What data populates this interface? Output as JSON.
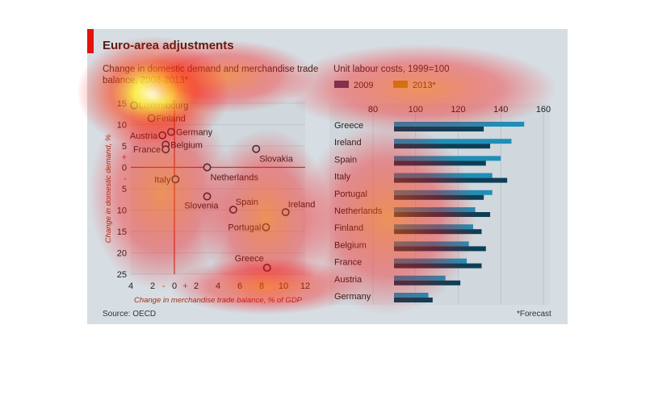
{
  "header": {
    "title": "Euro-area adjustments"
  },
  "left_chart": {
    "subtitle_line1": "Change in domestic demand and merchandise trade",
    "subtitle_line2": "balance, 2008-2013*",
    "xlabel": "Change in merchandise trade balance, % of GDP",
    "ylabel": "Change in domestic demand, %"
  },
  "right_chart": {
    "subtitle": "Unit labour costs, 1999=100",
    "legend_2009": "2009",
    "legend_2013": "2013*"
  },
  "footer": {
    "source": "Source: OECD",
    "forecast_note": "*Forecast"
  },
  "colors": {
    "series_2009": "#1f8fb8",
    "series_2013": "#0c3f57",
    "zero_line": "#c0392b",
    "title_bar": "#e3120b"
  },
  "chart_data": [
    {
      "type": "scatter",
      "xlabel": "Change in merchandise trade balance, % of GDP",
      "ylabel": "Change in domestic demand, %",
      "xlim": [
        -4,
        12
      ],
      "ylim": [
        -25,
        15
      ],
      "x_ticks": [
        {
          "value": -4,
          "label": "4"
        },
        {
          "value": -2,
          "label": "2"
        },
        {
          "value": -1,
          "label": "-"
        },
        {
          "value": 0,
          "label": "0"
        },
        {
          "value": 1,
          "label": "+"
        },
        {
          "value": 2,
          "label": "2"
        },
        {
          "value": 4,
          "label": "4"
        },
        {
          "value": 6,
          "label": "6"
        },
        {
          "value": 8,
          "label": "8"
        },
        {
          "value": 10,
          "label": "10"
        },
        {
          "value": 12,
          "label": "12"
        }
      ],
      "y_ticks": [
        {
          "value": 15,
          "label": "15"
        },
        {
          "value": 10,
          "label": "10"
        },
        {
          "value": 5,
          "label": "5"
        },
        {
          "value": 2.5,
          "label": "+"
        },
        {
          "value": 0,
          "label": "0"
        },
        {
          "value": -2.5,
          "label": "-"
        },
        {
          "value": -5,
          "label": "5"
        },
        {
          "value": -10,
          "label": "10"
        },
        {
          "value": -15,
          "label": "15"
        },
        {
          "value": -20,
          "label": "20"
        },
        {
          "value": -25,
          "label": "25"
        }
      ],
      "points": [
        {
          "name": "Luxembourg",
          "label": "Luxembourg",
          "x": -3.7,
          "y": 14.5,
          "label_pos": "right"
        },
        {
          "name": "Finland",
          "label": "Finland",
          "x": -2.1,
          "y": 11.5,
          "label_pos": "right"
        },
        {
          "name": "Austria",
          "label": "Austria",
          "x": -1.1,
          "y": 7.5,
          "label_pos": "left"
        },
        {
          "name": "Germany",
          "label": "Germany",
          "x": -0.3,
          "y": 8.3,
          "label_pos": "right"
        },
        {
          "name": "Belgium",
          "label": "Belgium",
          "x": -0.8,
          "y": 5.3,
          "label_pos": "right"
        },
        {
          "name": "France",
          "label": "France",
          "x": -0.8,
          "y": 4.2,
          "label_pos": "left"
        },
        {
          "name": "Slovakia",
          "label": "Slovakia",
          "x": 7.5,
          "y": 4.3,
          "label_pos": "below-right"
        },
        {
          "name": "Netherlands",
          "label": "Netherlands",
          "x": 3.0,
          "y": 0.0,
          "label_pos": "below-right"
        },
        {
          "name": "Italy",
          "label": "Italy",
          "x": 0.1,
          "y": -2.8,
          "label_pos": "left"
        },
        {
          "name": "Slovenia",
          "label": "Slovenia",
          "x": 3.0,
          "y": -6.8,
          "label_pos": "below-left"
        },
        {
          "name": "Spain",
          "label": "Spain",
          "x": 5.4,
          "y": -9.9,
          "label_pos": "above-right"
        },
        {
          "name": "Ireland",
          "label": "Ireland",
          "x": 10.2,
          "y": -10.5,
          "label_pos": "above-right"
        },
        {
          "name": "Portugal",
          "label": "Portugal",
          "x": 8.4,
          "y": -14.0,
          "label_pos": "left"
        },
        {
          "name": "Greece",
          "label": "Greece",
          "x": 8.5,
          "y": -23.5,
          "label_pos": "above-left"
        }
      ]
    },
    {
      "type": "bar",
      "orientation": "horizontal",
      "title": "Unit labour costs, 1999=100",
      "xlim": [
        80,
        160
      ],
      "x_ticks": [
        80,
        100,
        120,
        140,
        160
      ],
      "categories": [
        "Greece",
        "Ireland",
        "Spain",
        "Italy",
        "Portugal",
        "Netherlands",
        "Finland",
        "Belgium",
        "France",
        "Austria",
        "Germany"
      ],
      "series": [
        {
          "name": "2009",
          "values": [
            151,
            145,
            140,
            136,
            136,
            128,
            127,
            125,
            124,
            114,
            106
          ]
        },
        {
          "name": "2013*",
          "values": [
            132,
            135,
            133,
            143,
            132,
            135,
            131,
            133,
            131,
            121,
            108
          ]
        }
      ],
      "legend_position": "top-left"
    }
  ]
}
